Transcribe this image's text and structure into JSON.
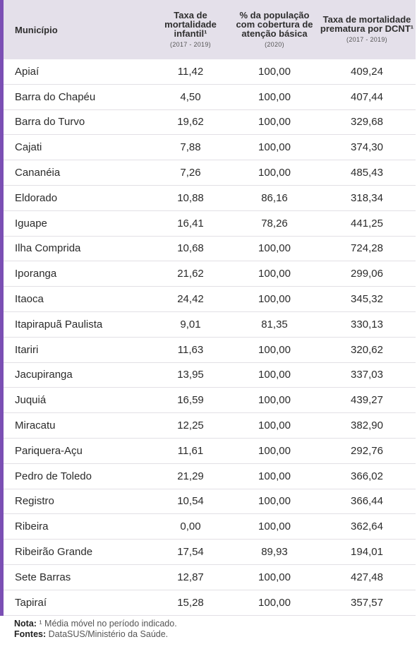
{
  "header": {
    "col0": "Município",
    "col1": "Taxa de mortalidade infantil¹",
    "col1_sub": "(2017 - 2019)",
    "col2": "% da população com cobertura de atenção básica",
    "col2_sub": "(2020)",
    "col3": "Taxa de mortalidade prematura por DCNT¹",
    "col3_sub": "(2017 - 2019)"
  },
  "rows": [
    [
      "Apiaí",
      "11,42",
      "100,00",
      "409,24"
    ],
    [
      "Barra do Chapéu",
      "4,50",
      "100,00",
      "407,44"
    ],
    [
      "Barra do Turvo",
      "19,62",
      "100,00",
      "329,68"
    ],
    [
      "Cajati",
      "7,88",
      "100,00",
      "374,30"
    ],
    [
      "Cananéia",
      "7,26",
      "100,00",
      "485,43"
    ],
    [
      "Eldorado",
      "10,88",
      "86,16",
      "318,34"
    ],
    [
      "Iguape",
      "16,41",
      "78,26",
      "441,25"
    ],
    [
      "Ilha Comprida",
      "10,68",
      "100,00",
      "724,28"
    ],
    [
      "Iporanga",
      "21,62",
      "100,00",
      "299,06"
    ],
    [
      "Itaoca",
      "24,42",
      "100,00",
      "345,32"
    ],
    [
      "Itapirapuã Paulista",
      "9,01",
      "81,35",
      "330,13"
    ],
    [
      "Itariri",
      "11,63",
      "100,00",
      "320,62"
    ],
    [
      "Jacupiranga",
      "13,95",
      "100,00",
      "337,03"
    ],
    [
      "Juquiá",
      "16,59",
      "100,00",
      "439,27"
    ],
    [
      "Miracatu",
      "12,25",
      "100,00",
      "382,90"
    ],
    [
      "Pariquera-Açu",
      "11,61",
      "100,00",
      "292,76"
    ],
    [
      "Pedro de Toledo",
      "21,29",
      "100,00",
      "366,02"
    ],
    [
      "Registro",
      "10,54",
      "100,00",
      "366,44"
    ],
    [
      "Ribeira",
      "0,00",
      "100,00",
      "362,64"
    ],
    [
      "Ribeirão Grande",
      "17,54",
      "89,93",
      "194,01"
    ],
    [
      "Sete Barras",
      "12,87",
      "100,00",
      "427,48"
    ],
    [
      "Tapiraí",
      "15,28",
      "100,00",
      "357,57"
    ]
  ],
  "footer": {
    "note_label": "Nota:",
    "note_text": " ¹ Média móvel no período indicado.",
    "source_label": "Fontes:",
    "source_text": " DataSUS/Ministério da Saúde."
  },
  "colors": {
    "accent": "#7b4fb4",
    "header_bg": "#e4e0ea",
    "row_border": "#e2e0e5"
  }
}
